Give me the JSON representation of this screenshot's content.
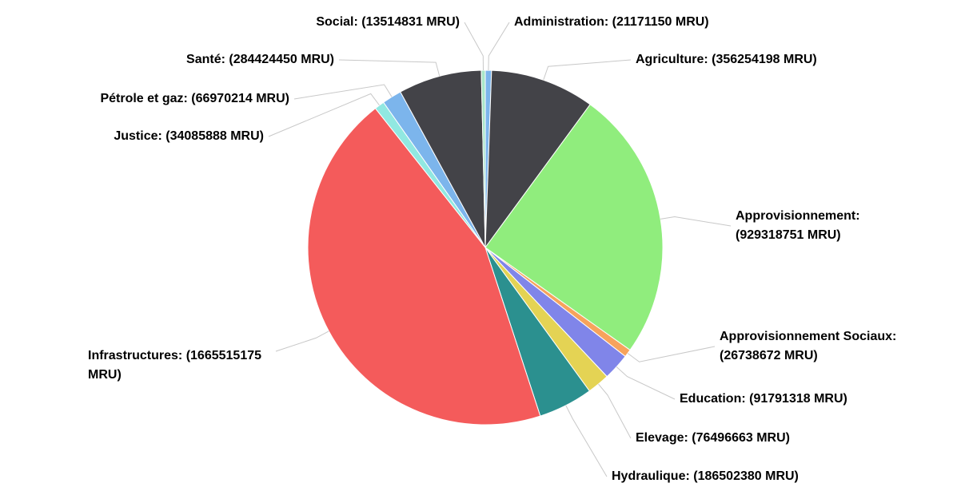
{
  "chart_data": {
    "type": "pie",
    "categories": [
      "Administration:",
      "Agriculture:",
      "Approvisionnement:",
      "Approvisionnement Sociaux:",
      "Education:",
      "Elevage:",
      "Hydraulique:",
      "Infrastructures:",
      "Justice:",
      "Pétrole et gaz:",
      "Santé:",
      "Social:"
    ],
    "values": [
      21171150,
      356254198,
      929318751,
      26738672,
      91791318,
      76496663,
      186502380,
      1665515175,
      34085888,
      66970214,
      284424450,
      13514831
    ],
    "value_labels": [
      "(21171150 MRU)",
      "(356254198 MRU)",
      "(929318751 MRU)",
      "(26738672 MRU)",
      "(91791318 MRU)",
      "(76496663 MRU)",
      "(186502380 MRU)",
      "(1665515175 MRU)",
      "(34085888 MRU)",
      "(66970214 MRU)",
      "(284424450 MRU)",
      "(13514831 MRU)"
    ],
    "colors": [
      "#7cb5ec",
      "#434348",
      "#90ed7d",
      "#f7a35c",
      "#8085e9",
      "#e4d354",
      "#2b908f",
      "#f45b5b",
      "#91e8e1",
      "#7cb5ec",
      "#434348",
      "#a8e6c8"
    ]
  }
}
